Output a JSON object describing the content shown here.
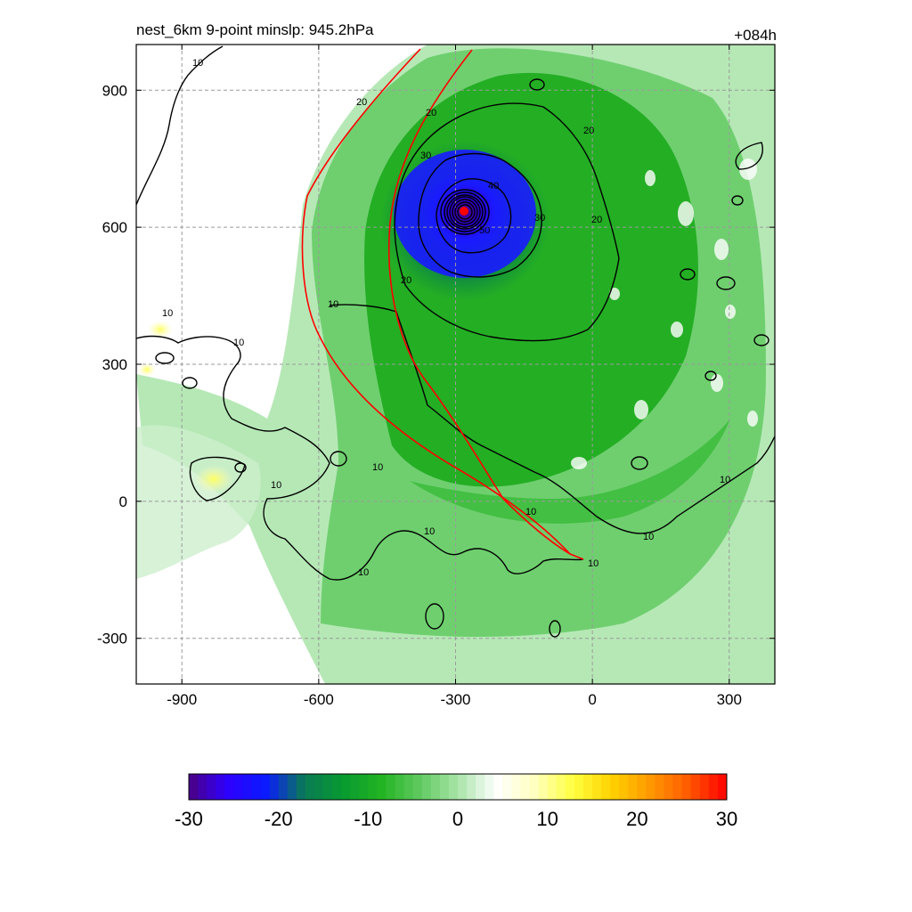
{
  "title_left": "nest_6km  9-point minslp: 945.2hPa",
  "title_right": "+084h",
  "chart_data": {
    "type": "heatmap",
    "title": "nest_6km  9-point minslp: 945.2hPa",
    "forecast_hour": "+084h",
    "xlabel": "",
    "ylabel": "",
    "xlim": [
      -1000,
      400
    ],
    "ylim": [
      -400,
      1000
    ],
    "x_ticks": [
      -900,
      -600,
      -300,
      0,
      300
    ],
    "y_ticks": [
      -300,
      0,
      300,
      600,
      900
    ],
    "grid": true,
    "center": {
      "x": -285,
      "y": 645
    },
    "contour_levels": [
      10,
      20,
      30,
      40,
      50
    ],
    "contour_label_values": [
      "10",
      "20",
      "30",
      "40",
      "50"
    ],
    "colorbar": {
      "min": -30,
      "max": 30,
      "ticks": [
        -30,
        -20,
        -10,
        0,
        10,
        20,
        30
      ],
      "tick_labels": [
        "-30",
        "-20",
        "-10",
        "0",
        "10",
        "20",
        "30"
      ],
      "colors": [
        "#4b0082",
        "#2f00ff",
        "#0a1aff",
        "#0a7a55",
        "#079a30",
        "#22b422",
        "#5fc95f",
        "#a8e4a8",
        "#ffffff",
        "#ffffc0",
        "#ffff40",
        "#ffd200",
        "#ff9800",
        "#ff5a00",
        "#ff0000"
      ]
    },
    "shading_colors": {
      "light_green": "#b6e8b6",
      "mid_green": "#5fc95f",
      "green": "#18a818",
      "dark_green": "#0a8a3a",
      "blue": "#1a1aff",
      "deep_blue": "#0000c8",
      "purple": "#4b0082",
      "yellow": "#ffff70"
    },
    "track_color": "#ff0000",
    "contour_color": "#000000"
  }
}
